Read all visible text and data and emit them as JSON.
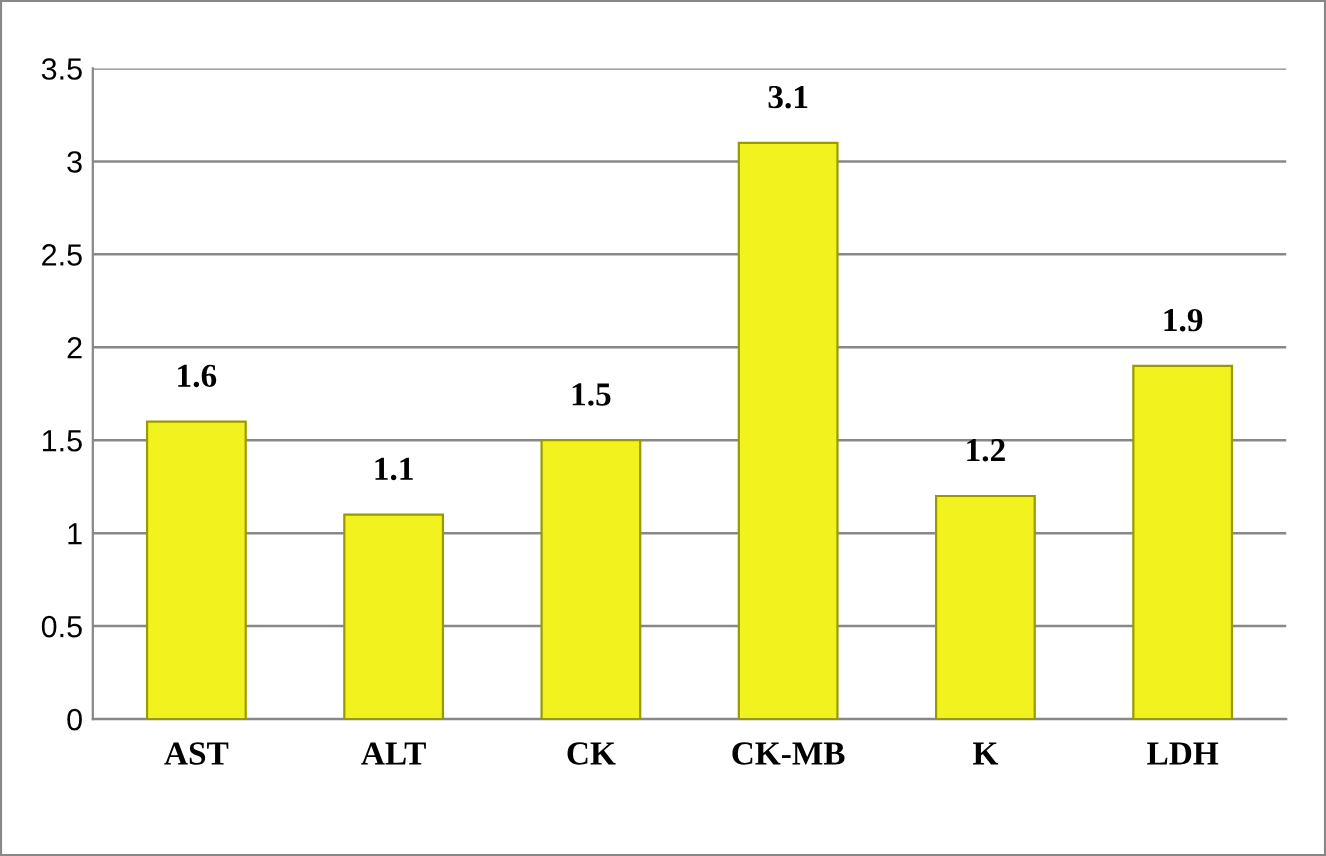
{
  "chart_data": {
    "type": "bar",
    "categories": [
      "AST",
      "ALT",
      "CK",
      "CK-MB",
      "K",
      "LDH"
    ],
    "values": [
      1.6,
      1.1,
      1.5,
      3.1,
      1.2,
      1.9
    ],
    "color": "#f2f21e",
    "ylim": [
      0,
      3.5
    ],
    "yticks": [
      0,
      0.5,
      1,
      1.5,
      2,
      2.5,
      3,
      3.5
    ],
    "grid": "y",
    "data_labels": true
  }
}
